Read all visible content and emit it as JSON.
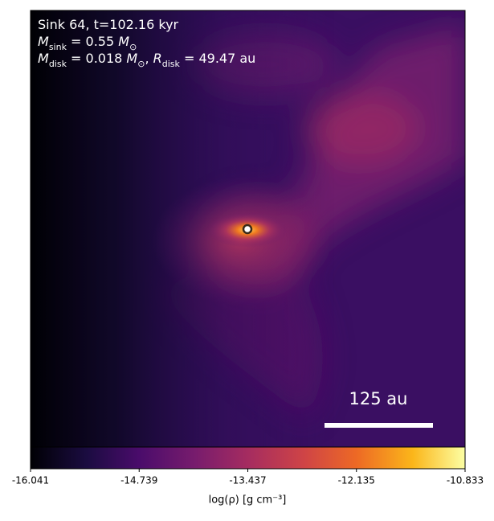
{
  "chart_data": {
    "type": "image",
    "annotations": [
      [
        {
          "text": "Sink 64, t=102.16 kyr"
        }
      ],
      [
        {
          "text": "M"
        },
        {
          "text": "sink",
          "sub": true
        },
        {
          "text": " = 0.55 "
        },
        {
          "text": "M"
        },
        {
          "text": "⊙",
          "sub": true
        }
      ],
      [
        {
          "text": "M"
        },
        {
          "text": "disk",
          "sub": true
        },
        {
          "text": " = 0.018 "
        },
        {
          "text": "M"
        },
        {
          "text": "⊙",
          "sub": true
        },
        {
          "text": ", "
        },
        {
          "text": "R"
        },
        {
          "text": "disk",
          "sub": true
        },
        {
          "text": " = 49.47 au"
        }
      ]
    ],
    "scale_bar_label": "125 au",
    "colorbar": {
      "label": "log(ρ) [g cm⁻³]",
      "lim": [
        -16.041,
        -10.833
      ],
      "ticks": [
        -16.041,
        -14.739,
        -13.437,
        -12.135,
        -10.833
      ]
    }
  }
}
